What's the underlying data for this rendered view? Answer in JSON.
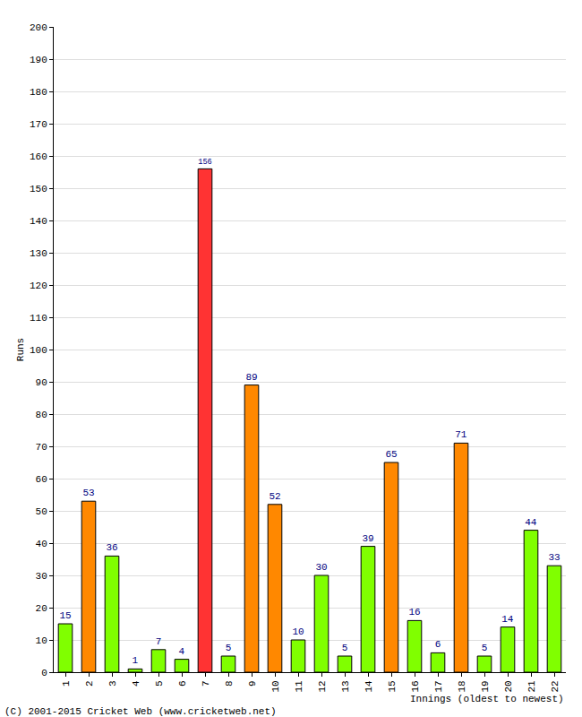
{
  "chart_data": {
    "type": "bar",
    "y_label": "Runs",
    "x_label": "Innings (oldest to newest)",
    "annotations": [
      "(C) 2001-2015 Cricket Web (www.cricketweb.net)"
    ],
    "categories": [
      "1",
      "2",
      "3",
      "4",
      "5",
      "6",
      "7",
      "8",
      "9",
      "10",
      "11",
      "12",
      "13",
      "14",
      "15",
      "16",
      "17",
      "18",
      "19",
      "20",
      "21",
      "22"
    ],
    "values": [
      15,
      53,
      36,
      1,
      7,
      4,
      156,
      5,
      89,
      52,
      10,
      30,
      5,
      39,
      65,
      16,
      6,
      71,
      5,
      14,
      44,
      33
    ],
    "colors": [
      "#80ff00",
      "#ff8800",
      "#80ff00",
      "#80ff00",
      "#80ff00",
      "#80ff00",
      "#ff3333",
      "#80ff00",
      "#ff8800",
      "#ff8800",
      "#80ff00",
      "#80ff00",
      "#80ff00",
      "#80ff00",
      "#ff8800",
      "#80ff00",
      "#80ff00",
      "#ff8800",
      "#80ff00",
      "#80ff00",
      "#80ff00",
      "#80ff00"
    ],
    "ylim": [
      0,
      200
    ],
    "yticks": [
      0,
      10,
      20,
      30,
      40,
      50,
      60,
      70,
      80,
      90,
      100,
      110,
      120,
      130,
      140,
      150,
      160,
      170,
      180,
      190,
      200
    ],
    "grid": true,
    "data_labels": true
  }
}
